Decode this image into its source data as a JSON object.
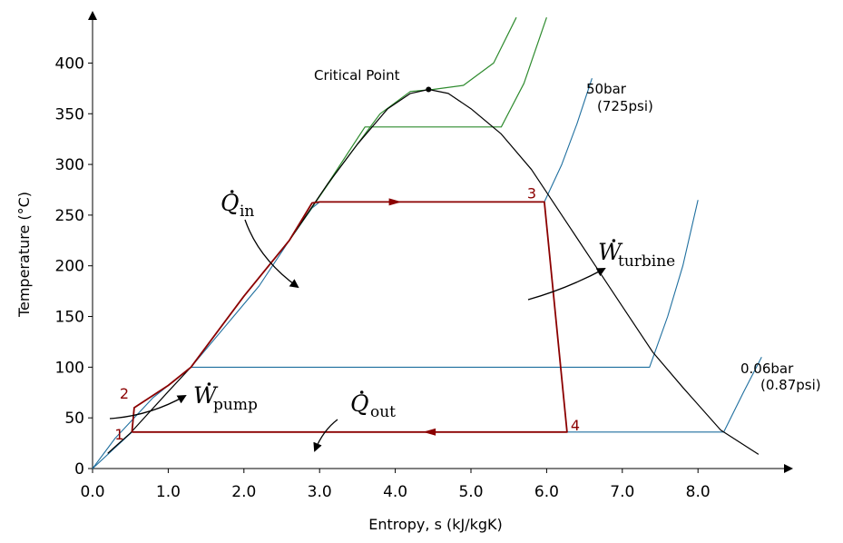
{
  "chart_data": {
    "type": "line",
    "title": "",
    "xlabel": "Entropy, s  (kJ/kgK)",
    "ylabel": "Temperature (°C)",
    "xlim": [
      0,
      9.1
    ],
    "ylim": [
      0,
      445
    ],
    "x_ticks": [
      "0.0",
      "1.0",
      "2.0",
      "3.0",
      "4.0",
      "5.0",
      "6.0",
      "7.0",
      "8.0"
    ],
    "y_ticks": [
      "0",
      "50",
      "100",
      "150",
      "200",
      "250",
      "300",
      "350",
      "400"
    ],
    "colors": {
      "dome": "#000000",
      "cycle": "#8b0000",
      "isobar_blue": "#1f6f9f",
      "isobar_green": "#2e8b2e"
    },
    "series": [
      {
        "name": "saturation dome",
        "points": [
          [
            0.2,
            15
          ],
          [
            0.5,
            35
          ],
          [
            1.0,
            76
          ],
          [
            1.3,
            100
          ],
          [
            2.0,
            170
          ],
          [
            2.6,
            225
          ],
          [
            3.1,
            280
          ],
          [
            3.5,
            320
          ],
          [
            3.9,
            355
          ],
          [
            4.2,
            370
          ],
          [
            4.44,
            374
          ],
          [
            4.7,
            370
          ],
          [
            5.0,
            355
          ],
          [
            5.4,
            330
          ],
          [
            5.8,
            295
          ],
          [
            6.2,
            250
          ],
          [
            6.6,
            205
          ],
          [
            7.0,
            160
          ],
          [
            7.4,
            115
          ],
          [
            7.8,
            80
          ],
          [
            8.3,
            38
          ],
          [
            8.8,
            14
          ]
        ]
      },
      {
        "name": "isobar 0.06bar",
        "points": [
          [
            0,
            0
          ],
          [
            0.52,
            36
          ],
          [
            8.34,
            36
          ],
          [
            8.6,
            75
          ],
          [
            8.84,
            110
          ]
        ]
      },
      {
        "name": "isobar ~1bar",
        "points": [
          [
            0,
            0
          ],
          [
            0.3,
            30
          ],
          [
            0.8,
            70
          ],
          [
            1.3,
            100
          ],
          [
            7.36,
            100
          ],
          [
            7.6,
            150
          ],
          [
            7.8,
            200
          ],
          [
            8.0,
            265
          ]
        ]
      },
      {
        "name": "isobar 50bar",
        "points": [
          [
            1.3,
            100
          ],
          [
            2.2,
            180
          ],
          [
            2.6,
            225
          ],
          [
            2.9,
            257
          ],
          [
            3.0,
            263
          ],
          [
            5.97,
            263
          ],
          [
            6.2,
            300
          ],
          [
            6.4,
            340
          ],
          [
            6.6,
            385
          ]
        ]
      },
      {
        "name": "isobar high A",
        "points": [
          [
            2.6,
            225
          ],
          [
            3.1,
            280
          ],
          [
            3.6,
            337
          ],
          [
            5.4,
            337
          ],
          [
            5.7,
            380
          ],
          [
            6.0,
            445
          ]
        ]
      },
      {
        "name": "isobar high B",
        "points": [
          [
            2.6,
            225
          ],
          [
            3.2,
            290
          ],
          [
            3.8,
            350
          ],
          [
            4.2,
            372
          ],
          [
            4.5,
            374
          ],
          [
            4.9,
            378
          ],
          [
            5.3,
            400
          ],
          [
            5.6,
            445
          ]
        ]
      },
      {
        "name": "Rankine cycle",
        "points": [
          [
            0.52,
            36
          ],
          [
            0.55,
            60
          ],
          [
            1.0,
            82
          ],
          [
            1.3,
            100
          ],
          [
            2.0,
            170
          ],
          [
            2.6,
            225
          ],
          [
            2.9,
            262
          ],
          [
            3.0,
            263
          ],
          [
            5.97,
            263
          ],
          [
            6.27,
            36
          ],
          [
            0.52,
            36
          ]
        ]
      }
    ],
    "state_points": [
      {
        "label": "1",
        "s": 0.52,
        "T": 36
      },
      {
        "label": "2",
        "s": 0.55,
        "T": 60
      },
      {
        "label": "3",
        "s": 5.97,
        "T": 263
      },
      {
        "label": "4",
        "s": 6.27,
        "T": 36
      }
    ],
    "critical_point": {
      "label": "Critical Point",
      "s": 4.44,
      "T": 374
    },
    "annotations": {
      "p_high": "50bar",
      "p_high_psi": "(725psi)",
      "p_low": "0.06bar",
      "p_low_psi": "(0.87psi)",
      "q_in_sym": "Q",
      "q_in_sub": "in",
      "q_out_sym": "Q",
      "q_out_sub": "out",
      "w_pump_sym": "W",
      "w_pump_sub": "pump",
      "w_turbine_sym": "W",
      "w_turbine_sub": "turbine"
    }
  }
}
